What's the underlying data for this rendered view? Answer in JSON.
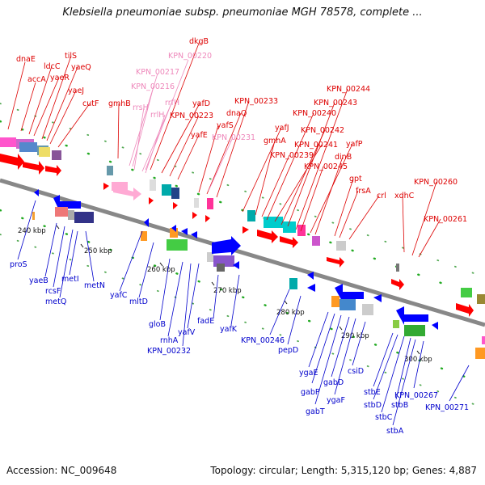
{
  "title": "Klebsiella pneumoniae subsp. pneumoniae MGH 78578, complete ...",
  "footer": {
    "accession": "Accession: NC_009648",
    "stats": "Topology: circular; Length: 5,315,120 bp; Genes: 4,887"
  },
  "colors": {
    "forward_label": "#dd0000",
    "rna_label": "#ee88bb",
    "reverse_label": "#0000cc",
    "backbone": "#888888",
    "forward_arrow": "#ff0000",
    "reverse_arrow": "#0000ff",
    "rna_arrow": "#ffaad4"
  },
  "ticks": [
    "240 kbp",
    "250 kbp",
    "260 kbp",
    "270 kbp",
    "280 kbp",
    "290 kbp",
    "300 kbp"
  ],
  "forward_labels": [
    "dnaE",
    "accA",
    "ldcC",
    "yaeR",
    "tilS",
    "yaeQ",
    "yaeJ",
    "cutF",
    "gmhB",
    "dkgB",
    "yafD",
    "KPN_00223",
    "yafE",
    "yafS",
    "dnaQ",
    "KPN_00233",
    "yafJ",
    "gmhA",
    "KPN_00239",
    "KPN_00240",
    "KPN_00241",
    "KPN_00242",
    "KPN_00243",
    "KPN_00244",
    "KPN_00245",
    "yafP",
    "dinB",
    "gpt",
    "frsA",
    "crl",
    "xdhC",
    "KPN_00260",
    "KPN_00261"
  ],
  "rna_labels": [
    "KPN_00220",
    "KPN_00217",
    "KPN_00216",
    "rrsH",
    "rrfH",
    "rrlH",
    "KPN_00231"
  ],
  "reverse_labels": [
    "proS",
    "yaeB",
    "rcsF",
    "metQ",
    "metI",
    "metN",
    "yafC",
    "mltD",
    "gloB",
    "rnhA",
    "KPN_00232",
    "yafV",
    "fadE",
    "yafK",
    "KPN_00246",
    "pepD",
    "ygaE",
    "gabP",
    "gabT",
    "gabD",
    "ygaF",
    "csiD",
    "stbE",
    "stbD",
    "stbC",
    "stbB",
    "stbA",
    "KPN_00267",
    "KPN_00271"
  ]
}
